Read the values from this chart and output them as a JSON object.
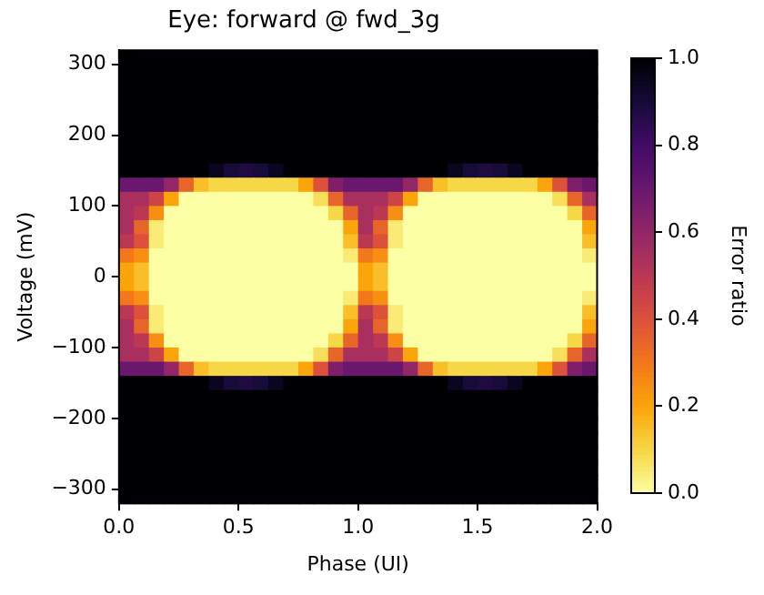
{
  "chart_data": {
    "type": "heatmap",
    "title": "Eye: forward @ fwd_3g",
    "xlabel": "Phase (UI)",
    "ylabel": "Voltage (mV)",
    "clabel": "Error ratio",
    "xlim": [
      0,
      2
    ],
    "xticks": [
      {
        "value": 0,
        "label": "0.0"
      },
      {
        "value": 0.5,
        "label": "0.5"
      },
      {
        "value": 1,
        "label": "1.0"
      },
      {
        "value": 1.5,
        "label": "1.5"
      },
      {
        "value": 2,
        "label": "2.0"
      }
    ],
    "ylim": [
      -320,
      320
    ],
    "yticks": [
      {
        "value": -300,
        "label": "−300"
      },
      {
        "value": -200,
        "label": "−200"
      },
      {
        "value": -100,
        "label": "−100"
      },
      0,
      100,
      200,
      300
    ],
    "clim": [
      0,
      1
    ],
    "cticks": [
      {
        "value": 0,
        "label": "0.0"
      },
      {
        "value": 0.2,
        "label": "0.2"
      },
      {
        "value": 0.4,
        "label": "0.4"
      },
      {
        "value": 0.6,
        "label": "0.6"
      },
      {
        "value": 0.8,
        "label": "0.8"
      },
      {
        "value": 1,
        "label": "1.0"
      }
    ],
    "cells": [
      [
        1,
        1,
        1,
        1,
        1,
        1,
        1,
        1,
        1,
        1,
        1,
        1,
        1,
        1,
        1,
        1,
        1,
        1,
        1,
        1,
        1,
        1,
        1,
        1,
        1,
        1,
        1,
        1,
        1,
        1,
        1,
        1
      ],
      [
        1,
        1,
        1,
        1,
        1,
        1,
        1,
        1,
        1,
        1,
        1,
        1,
        1,
        1,
        1,
        1,
        1,
        1,
        1,
        1,
        1,
        1,
        1,
        1,
        1,
        1,
        1,
        1,
        1,
        1,
        1,
        1
      ],
      [
        1,
        1,
        1,
        1,
        1,
        1,
        1,
        1,
        1,
        1,
        1,
        1,
        1,
        1,
        1,
        1,
        1,
        1,
        1,
        1,
        1,
        1,
        1,
        1,
        1,
        1,
        1,
        1,
        1,
        1,
        1,
        1
      ],
      [
        1,
        1,
        1,
        1,
        1,
        1,
        1,
        1,
        1,
        1,
        1,
        1,
        1,
        1,
        1,
        1,
        1,
        1,
        1,
        1,
        1,
        1,
        1,
        1,
        1,
        1,
        1,
        1,
        1,
        1,
        1,
        1
      ],
      [
        1,
        1,
        1,
        1,
        1,
        1,
        1,
        1,
        1,
        1,
        1,
        1,
        1,
        1,
        1,
        1,
        1,
        1,
        1,
        1,
        1,
        1,
        1,
        1,
        1,
        1,
        1,
        1,
        1,
        1,
        1,
        1
      ],
      [
        1,
        1,
        1,
        1,
        1,
        1,
        1,
        1,
        1,
        1,
        1,
        1,
        1,
        1,
        1,
        1,
        1,
        1,
        1,
        1,
        1,
        1,
        1,
        1,
        1,
        1,
        1,
        1,
        1,
        1,
        1,
        1
      ],
      [
        1,
        1,
        1,
        1,
        1,
        1,
        1,
        1,
        1,
        1,
        1,
        1,
        1,
        1,
        1,
        1,
        1,
        1,
        1,
        1,
        1,
        1,
        1,
        1,
        1,
        1,
        1,
        1,
        1,
        1,
        1,
        1
      ],
      [
        1,
        1,
        1,
        1,
        1,
        1,
        1,
        1,
        1,
        1,
        1,
        1,
        1,
        1,
        1,
        1,
        1,
        1,
        1,
        1,
        1,
        1,
        1,
        1,
        1,
        1,
        1,
        1,
        1,
        1,
        1,
        1
      ],
      [
        1,
        1,
        1,
        1,
        1,
        1,
        0.95,
        0.9,
        0.88,
        0.9,
        0.95,
        1,
        1,
        1,
        1,
        1,
        1,
        1,
        1,
        1,
        1,
        1,
        0.95,
        0.9,
        0.88,
        0.9,
        0.95,
        1,
        1,
        1,
        1,
        1
      ],
      [
        0.7,
        0.7,
        0.7,
        0.6,
        0.35,
        0.15,
        0.1,
        0.1,
        0.1,
        0.1,
        0.1,
        0.1,
        0.2,
        0.4,
        0.65,
        0.7,
        0.7,
        0.7,
        0.7,
        0.6,
        0.35,
        0.15,
        0.1,
        0.1,
        0.1,
        0.1,
        0.1,
        0.1,
        0.2,
        0.4,
        0.65,
        0.7
      ],
      [
        0.55,
        0.55,
        0.45,
        0.2,
        0,
        0,
        0,
        0,
        0,
        0,
        0,
        0,
        0,
        0.08,
        0.35,
        0.55,
        0.55,
        0.55,
        0.45,
        0.2,
        0,
        0,
        0,
        0,
        0,
        0,
        0,
        0,
        0,
        0.08,
        0.35,
        0.55
      ],
      [
        0.55,
        0.5,
        0.25,
        0,
        0,
        0,
        0,
        0,
        0,
        0,
        0,
        0,
        0,
        0,
        0.1,
        0.35,
        0.55,
        0.5,
        0.25,
        0,
        0,
        0,
        0,
        0,
        0,
        0,
        0,
        0,
        0,
        0,
        0.1,
        0.35
      ],
      [
        0.55,
        0.35,
        0.05,
        0,
        0,
        0,
        0,
        0,
        0,
        0,
        0,
        0,
        0,
        0,
        0,
        0.2,
        0.55,
        0.35,
        0.05,
        0,
        0,
        0,
        0,
        0,
        0,
        0,
        0,
        0,
        0,
        0,
        0,
        0.2
      ],
      [
        0.5,
        0.4,
        0.05,
        0,
        0,
        0,
        0,
        0,
        0,
        0,
        0,
        0,
        0,
        0,
        0,
        0.15,
        0.5,
        0.4,
        0.05,
        0,
        0,
        0,
        0,
        0,
        0,
        0,
        0,
        0,
        0,
        0,
        0,
        0.15
      ],
      [
        0.3,
        0.25,
        0,
        0,
        0,
        0,
        0,
        0,
        0,
        0,
        0,
        0,
        0,
        0,
        0,
        0.05,
        0.3,
        0.25,
        0,
        0,
        0,
        0,
        0,
        0,
        0,
        0,
        0,
        0,
        0,
        0,
        0,
        0.05
      ],
      [
        0.2,
        0.15,
        0,
        0,
        0,
        0,
        0,
        0,
        0,
        0,
        0,
        0,
        0,
        0,
        0,
        0,
        0.2,
        0.15,
        0,
        0,
        0,
        0,
        0,
        0,
        0,
        0,
        0,
        0,
        0,
        0,
        0,
        0
      ],
      [
        0.2,
        0.15,
        0,
        0,
        0,
        0,
        0,
        0,
        0,
        0,
        0,
        0,
        0,
        0,
        0,
        0,
        0.2,
        0.15,
        0,
        0,
        0,
        0,
        0,
        0,
        0,
        0,
        0,
        0,
        0,
        0,
        0,
        0
      ],
      [
        0.3,
        0.25,
        0,
        0,
        0,
        0,
        0,
        0,
        0,
        0,
        0,
        0,
        0,
        0,
        0,
        0.05,
        0.3,
        0.25,
        0,
        0,
        0,
        0,
        0,
        0,
        0,
        0,
        0,
        0,
        0,
        0,
        0,
        0.05
      ],
      [
        0.5,
        0.4,
        0.05,
        0,
        0,
        0,
        0,
        0,
        0,
        0,
        0,
        0,
        0,
        0,
        0,
        0.15,
        0.5,
        0.4,
        0.05,
        0,
        0,
        0,
        0,
        0,
        0,
        0,
        0,
        0,
        0,
        0,
        0,
        0.15
      ],
      [
        0.55,
        0.35,
        0.05,
        0,
        0,
        0,
        0,
        0,
        0,
        0,
        0,
        0,
        0,
        0,
        0,
        0.2,
        0.55,
        0.35,
        0.05,
        0,
        0,
        0,
        0,
        0,
        0,
        0,
        0,
        0,
        0,
        0,
        0,
        0.2
      ],
      [
        0.55,
        0.5,
        0.25,
        0,
        0,
        0,
        0,
        0,
        0,
        0,
        0,
        0,
        0,
        0,
        0.1,
        0.35,
        0.55,
        0.5,
        0.25,
        0,
        0,
        0,
        0,
        0,
        0,
        0,
        0,
        0,
        0,
        0,
        0.1,
        0.35
      ],
      [
        0.55,
        0.55,
        0.45,
        0.2,
        0,
        0,
        0,
        0,
        0,
        0,
        0,
        0,
        0,
        0.08,
        0.35,
        0.55,
        0.55,
        0.55,
        0.45,
        0.2,
        0,
        0,
        0,
        0,
        0,
        0,
        0,
        0,
        0,
        0.08,
        0.35,
        0.55
      ],
      [
        0.7,
        0.7,
        0.7,
        0.6,
        0.35,
        0.15,
        0.1,
        0.1,
        0.1,
        0.1,
        0.1,
        0.1,
        0.2,
        0.4,
        0.65,
        0.7,
        0.7,
        0.7,
        0.7,
        0.6,
        0.35,
        0.15,
        0.1,
        0.1,
        0.1,
        0.1,
        0.1,
        0.1,
        0.2,
        0.4,
        0.65,
        0.7
      ],
      [
        1,
        1,
        1,
        1,
        1,
        1,
        0.95,
        0.9,
        0.88,
        0.9,
        0.95,
        1,
        1,
        1,
        1,
        1,
        1,
        1,
        1,
        1,
        1,
        1,
        0.95,
        0.9,
        0.88,
        0.9,
        0.95,
        1,
        1,
        1,
        1,
        1
      ],
      [
        1,
        1,
        1,
        1,
        1,
        1,
        1,
        1,
        1,
        1,
        1,
        1,
        1,
        1,
        1,
        1,
        1,
        1,
        1,
        1,
        1,
        1,
        1,
        1,
        1,
        1,
        1,
        1,
        1,
        1,
        1,
        1
      ],
      [
        1,
        1,
        1,
        1,
        1,
        1,
        1,
        1,
        1,
        1,
        1,
        1,
        1,
        1,
        1,
        1,
        1,
        1,
        1,
        1,
        1,
        1,
        1,
        1,
        1,
        1,
        1,
        1,
        1,
        1,
        1,
        1
      ],
      [
        1,
        1,
        1,
        1,
        1,
        1,
        1,
        1,
        1,
        1,
        1,
        1,
        1,
        1,
        1,
        1,
        1,
        1,
        1,
        1,
        1,
        1,
        1,
        1,
        1,
        1,
        1,
        1,
        1,
        1,
        1,
        1
      ],
      [
        1,
        1,
        1,
        1,
        1,
        1,
        1,
        1,
        1,
        1,
        1,
        1,
        1,
        1,
        1,
        1,
        1,
        1,
        1,
        1,
        1,
        1,
        1,
        1,
        1,
        1,
        1,
        1,
        1,
        1,
        1,
        1
      ],
      [
        1,
        1,
        1,
        1,
        1,
        1,
        1,
        1,
        1,
        1,
        1,
        1,
        1,
        1,
        1,
        1,
        1,
        1,
        1,
        1,
        1,
        1,
        1,
        1,
        1,
        1,
        1,
        1,
        1,
        1,
        1,
        1
      ],
      [
        1,
        1,
        1,
        1,
        1,
        1,
        1,
        1,
        1,
        1,
        1,
        1,
        1,
        1,
        1,
        1,
        1,
        1,
        1,
        1,
        1,
        1,
        1,
        1,
        1,
        1,
        1,
        1,
        1,
        1,
        1,
        1
      ],
      [
        1,
        1,
        1,
        1,
        1,
        1,
        1,
        1,
        1,
        1,
        1,
        1,
        1,
        1,
        1,
        1,
        1,
        1,
        1,
        1,
        1,
        1,
        1,
        1,
        1,
        1,
        1,
        1,
        1,
        1,
        1,
        1
      ],
      [
        1,
        1,
        1,
        1,
        1,
        1,
        1,
        1,
        1,
        1,
        1,
        1,
        1,
        1,
        1,
        1,
        1,
        1,
        1,
        1,
        1,
        1,
        1,
        1,
        1,
        1,
        1,
        1,
        1,
        1,
        1,
        1
      ]
    ]
  }
}
